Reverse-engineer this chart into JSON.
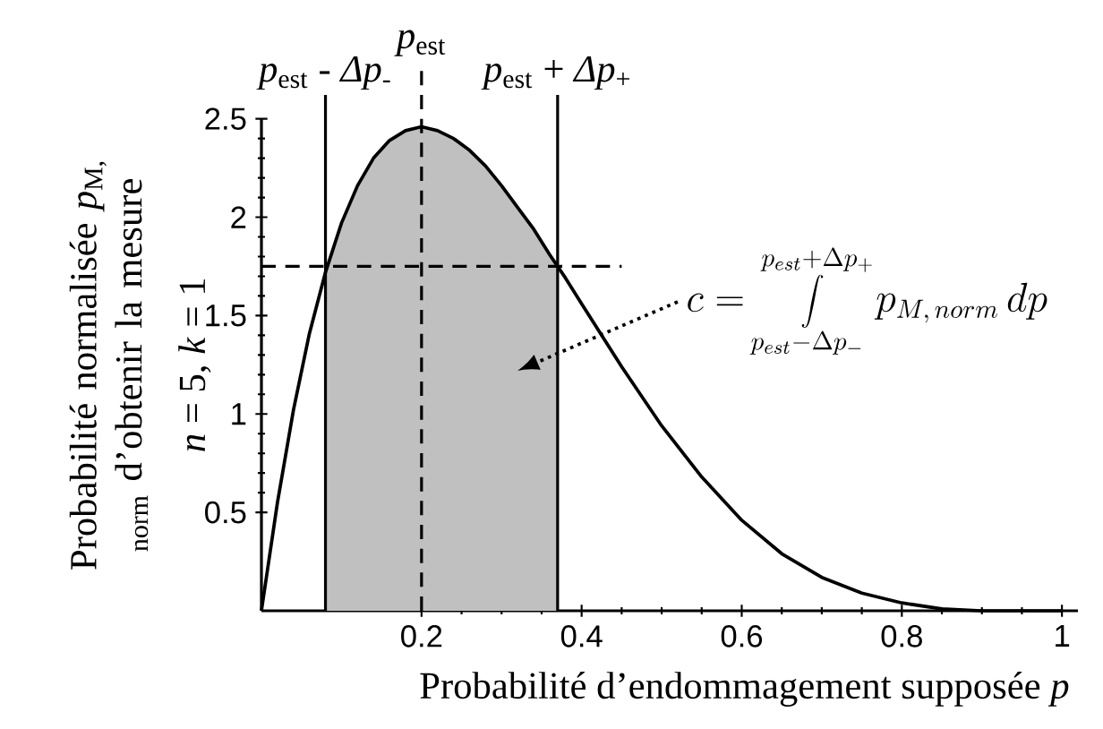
{
  "chart_data": {
    "type": "line",
    "xlabel": "Probabilité d’endommagement supposée *p*",
    "ylabel": "Probabilité normalisée *p*$_{M,}$ $_{norm}$ d’obtenir la mesure",
    "annotations": [
      "*n* = 5, *k* = 1",
      "c = \\int\\limits_{p_{est} - \\Delta p_-}^{p_{est} + \\Delta p_+} p_{M,\\, norm}\\, dp"
    ],
    "series": [
      {
        "type": "area",
        "color": "#c0c0c0",
        "x": [
          0.08,
          0.1,
          0.12,
          0.14,
          0.16,
          0.18,
          0.2,
          0.22,
          0.24,
          0.26,
          0.28,
          0.3,
          0.32,
          0.34,
          0.36,
          0.37
        ],
        "values": [
          1.72,
          1.97,
          2.16,
          2.3,
          2.39,
          2.44,
          2.46,
          2.44,
          2.4,
          2.34,
          2.26,
          2.16,
          2.05,
          1.94,
          1.81,
          1.75
        ]
      },
      {
        "color": "#000000",
        "x": [
          0,
          0.02,
          0.04,
          0.06,
          0.08,
          0.1,
          0.12,
          0.14,
          0.16,
          0.18,
          0.2,
          0.22,
          0.24,
          0.26,
          0.28,
          0.3,
          0.32,
          0.34,
          0.36,
          0.38,
          0.4,
          0.45,
          0.5,
          0.55,
          0.6,
          0.65,
          0.7,
          0.75,
          0.8,
          0.85,
          0.9,
          0.95,
          1
        ],
        "values": [
          0,
          0.55,
          1.02,
          1.41,
          1.72,
          1.97,
          2.16,
          2.3,
          2.39,
          2.44,
          2.46,
          2.44,
          2.4,
          2.34,
          2.26,
          2.16,
          2.05,
          1.94,
          1.81,
          1.69,
          1.56,
          1.24,
          0.94,
          0.68,
          0.46,
          0.29,
          0.17,
          0.09,
          0.04,
          0.01,
          0,
          0,
          0
        ]
      }
    ],
    "ref_lines": [
      {
        "axis": "x",
        "value": 0.08,
        "label": "*p*$_{est}$ - *Δp*$_{-}$",
        "line_style": "solid",
        "color": "#000000"
      },
      {
        "axis": "x",
        "value": 0.2,
        "label": "*p*$_{est}$",
        "line_style": "dashed",
        "color": "#000000"
      },
      {
        "axis": "x",
        "value": 0.37,
        "label": "*p*$_{est}$ + *Δp*$_{+}$",
        "line_style": "solid",
        "color": "#000000"
      },
      {
        "axis": "y",
        "value": 1.75,
        "line_style": "dashed",
        "color": "#000000"
      }
    ],
    "xlim": [
      0,
      1.02
    ],
    "ylim": [
      0,
      2.5
    ],
    "xticks": [
      0.2,
      0.4,
      0.6,
      0.8,
      1
    ],
    "yticks": [
      0.5,
      1,
      1.5,
      2,
      2.5
    ],
    "grid": false,
    "marker": "none",
    "line_style": "solid"
  }
}
